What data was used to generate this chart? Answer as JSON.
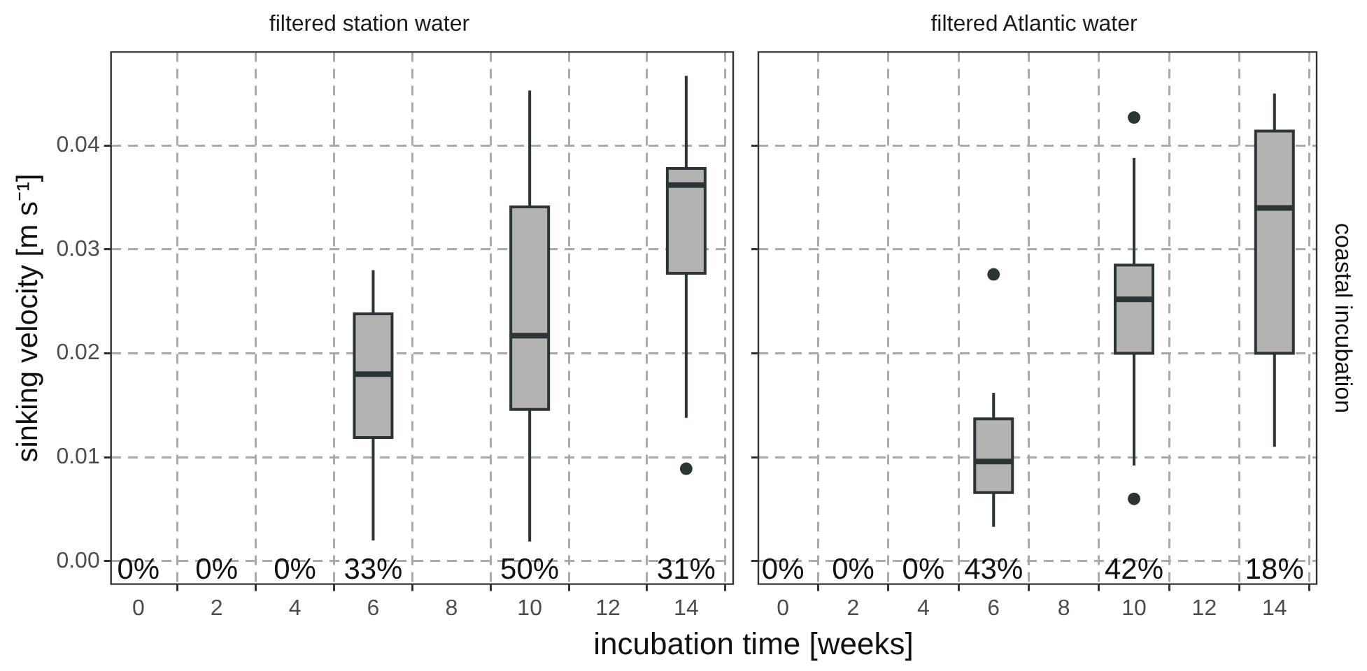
{
  "chart_data": [
    {
      "type": "box",
      "title": "filtered station water",
      "xlabel": "incubation time [weeks]",
      "ylabel": "sinking velocity [m s⁻¹]",
      "x": [
        6,
        10,
        14
      ],
      "series": [
        {
          "color": "#b3b3b3",
          "boxes": [
            {
              "low": 0.002,
              "q1": 0.0119,
              "median": 0.018,
              "q3": 0.0238,
              "high": 0.028
            },
            {
              "low": 0.0019,
              "q1": 0.0146,
              "median": 0.0217,
              "q3": 0.0341,
              "high": 0.0453
            },
            {
              "low": 0.0138,
              "q1": 0.0277,
              "median": 0.0362,
              "q3": 0.0378,
              "high": 0.0467,
              "outliers": [
                0.0089
              ]
            }
          ]
        }
      ],
      "xlim": [
        -0.7,
        15.2
      ],
      "xticks": [
        0,
        2,
        4,
        6,
        8,
        10,
        12,
        14
      ],
      "ylim": [
        -0.0022,
        0.049
      ],
      "yticks": [
        {
          "value": 0,
          "label": "0.00"
        },
        {
          "value": 0.01,
          "label": "0.01"
        },
        {
          "value": 0.02,
          "label": "0.02"
        },
        {
          "value": 0.03,
          "label": "0.03"
        },
        {
          "value": 0.04,
          "label": "0.04"
        }
      ],
      "grid": true,
      "annotations": [
        "0%",
        "0%",
        "0%",
        "33%",
        "50%",
        "31%"
      ]
    },
    {
      "type": "box",
      "title": "filtered Atlantic water",
      "x": [
        6,
        10,
        14
      ],
      "series": [
        {
          "color": "#b3b3b3",
          "boxes": [
            {
              "low": 0.0033,
              "q1": 0.0066,
              "median": 0.0096,
              "q3": 0.0137,
              "high": 0.0162,
              "outliers": [
                0.0276
              ]
            },
            {
              "low": 0.0092,
              "q1": 0.02,
              "median": 0.0252,
              "q3": 0.0285,
              "high": 0.0388,
              "outliers": [
                0.0427,
                0.006
              ]
            },
            {
              "low": 0.011,
              "q1": 0.02,
              "median": 0.034,
              "q3": 0.0414,
              "high": 0.045
            }
          ]
        }
      ],
      "xlim": [
        -0.7,
        15.2
      ],
      "xticks": [
        0,
        2,
        4,
        6,
        8,
        10,
        12,
        14
      ],
      "ylim": [
        -0.0022,
        0.049
      ],
      "yticks": [
        0,
        0.01,
        0.02,
        0.03,
        0.04
      ],
      "grid": true,
      "tick_labels": "x",
      "annotations": [
        "0%",
        "0%",
        "0%",
        "43%",
        "42%",
        "18%",
        "coastal incubation"
      ]
    }
  ]
}
